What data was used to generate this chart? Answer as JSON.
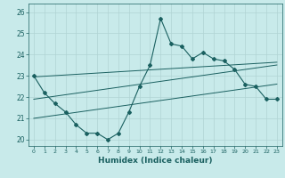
{
  "xlabel": "Humidex (Indice chaleur)",
  "x": [
    0,
    1,
    2,
    3,
    4,
    5,
    6,
    7,
    8,
    9,
    10,
    11,
    12,
    13,
    14,
    15,
    16,
    17,
    18,
    19,
    20,
    21,
    22,
    23
  ],
  "y_main": [
    23.0,
    22.2,
    21.7,
    21.3,
    20.7,
    20.3,
    20.3,
    20.0,
    20.3,
    21.3,
    22.5,
    23.5,
    25.7,
    24.5,
    24.4,
    23.8,
    24.1,
    23.8,
    23.7,
    23.3,
    22.6,
    22.5,
    21.9,
    21.9
  ],
  "y_reg_upper": [
    22.95,
    22.98,
    23.01,
    23.04,
    23.07,
    23.1,
    23.13,
    23.16,
    23.19,
    23.22,
    23.25,
    23.28,
    23.31,
    23.34,
    23.37,
    23.4,
    23.43,
    23.46,
    23.49,
    23.52,
    23.55,
    23.58,
    23.61,
    23.64
  ],
  "y_reg_mid": [
    21.9,
    21.97,
    22.04,
    22.11,
    22.18,
    22.25,
    22.32,
    22.39,
    22.46,
    22.53,
    22.6,
    22.67,
    22.74,
    22.81,
    22.88,
    22.95,
    23.02,
    23.09,
    23.16,
    23.23,
    23.3,
    23.37,
    23.44,
    23.51
  ],
  "y_reg_lower": [
    21.0,
    21.07,
    21.14,
    21.21,
    21.28,
    21.35,
    21.42,
    21.49,
    21.56,
    21.63,
    21.7,
    21.77,
    21.84,
    21.91,
    21.98,
    22.05,
    22.12,
    22.19,
    22.26,
    22.33,
    22.4,
    22.47,
    22.54,
    22.61
  ],
  "bg_color": "#c8eaea",
  "grid_color": "#b0d4d4",
  "line_color": "#1a6060",
  "ylim": [
    19.7,
    26.4
  ],
  "xlim": [
    -0.5,
    23.5
  ],
  "yticks": [
    20,
    21,
    22,
    23,
    24,
    25,
    26
  ],
  "xticks": [
    0,
    1,
    2,
    3,
    4,
    5,
    6,
    7,
    8,
    9,
    10,
    11,
    12,
    13,
    14,
    15,
    16,
    17,
    18,
    19,
    20,
    21,
    22,
    23
  ]
}
